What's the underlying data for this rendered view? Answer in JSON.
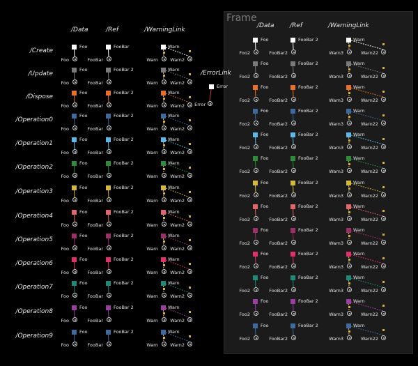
{
  "frame": {
    "title": "Frame"
  },
  "headers": {
    "data": "/Data",
    "ref": "/Ref",
    "warning": "/WarningLink",
    "error": "/ErrorLink"
  },
  "error_node": {
    "label": "Error",
    "out_label": "Error"
  },
  "rows": [
    {
      "label": "/Create",
      "color": "#ffffff"
    },
    {
      "label": "/Update",
      "color": "#7a7a7a"
    },
    {
      "label": "/Dispose",
      "color": "#e8702a"
    },
    {
      "label": "/Operation0",
      "color": "#3f6aa0"
    },
    {
      "label": "/Operation1",
      "color": "#5bb8e8"
    },
    {
      "label": "/Operation2",
      "color": "#2e8b3a"
    },
    {
      "label": "/Operation3",
      "color": "#d4b83a"
    },
    {
      "label": "/Operation4",
      "color": "#e0666a"
    },
    {
      "label": "/Operation5",
      "color": "#9c2f6a"
    },
    {
      "label": "/Operation6",
      "color": "#e0306a"
    },
    {
      "label": "/Operation7",
      "color": "#1f8a7a"
    },
    {
      "label": "/Operation8",
      "color": "#9a3fa0"
    },
    {
      "label": "/Operation9",
      "color": "#3f6aa0"
    }
  ],
  "left": {
    "data_node": "Foo",
    "data_out": "Foo",
    "ref_node_first": "FooBar",
    "ref_node": "FooBar 2",
    "ref_out": "FooBar",
    "warn_node": "Warn",
    "warn_out_a": "Warn",
    "warn_out_b": "Warn2"
  },
  "right": {
    "data_node": "Foo",
    "data_out": "Foo2",
    "ref_node": "FooBar 2",
    "ref_out": "FooBar2",
    "warn_node": "Warn",
    "warn_out_a": "Warn3",
    "warn_out_b": "Warn22"
  }
}
